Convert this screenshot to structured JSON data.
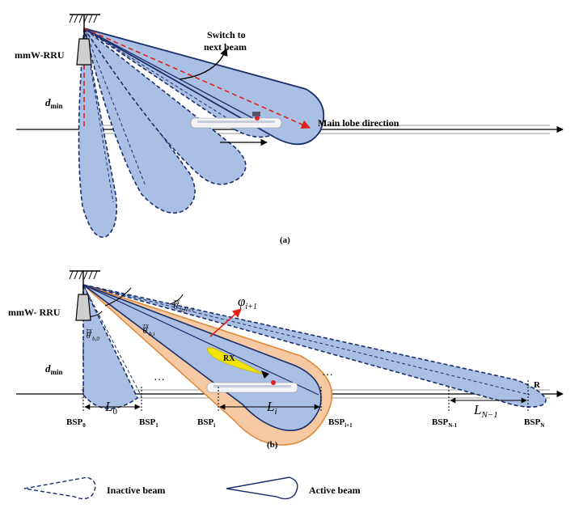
{
  "panel_a": {
    "antenna_label": "mmW-RRU",
    "switch_line1": "Switch to",
    "switch_line2": "next beam",
    "dmin_main": "d",
    "dmin_sub": "min",
    "main_lobe_label": "Main lobe direction",
    "caption": "(a)"
  },
  "panel_b": {
    "antenna_label": "mmW- RRU",
    "dmin_main": "d",
    "dmin_sub": "min",
    "rx_label": "RX",
    "r_label": "R",
    "phi_main": "φ",
    "phi_sub": "i+1",
    "theta_sym": "θ",
    "theta_sup": "TX",
    "theta_sub_0": "b,0",
    "theta_sub_i": "b,i",
    "theta_sub_n": "b,N−1",
    "l0_main": "L",
    "l0_sub": "0",
    "li_main": "L",
    "li_sub": "i",
    "ln_main": "L",
    "ln_sub": "N−1",
    "bsp_main": "BSP",
    "bsp0_sub": "0",
    "bsp1_sub": "1",
    "bspi_sub": "i",
    "bspi1_sub": "i+1",
    "bspn1_sub": "N-1",
    "bspn_sub": "N",
    "dots": "…",
    "caption": "(b)"
  },
  "legend": {
    "inactive_label": "Inactive beam",
    "active_label": "Active beam"
  },
  "colors": {
    "beam_fill": "#a9bfe3",
    "beam_stroke": "#1c2f6a",
    "active_orange": "#f5c9a3",
    "red": "#e0201b",
    "rx_yellow": "#f3e400"
  }
}
